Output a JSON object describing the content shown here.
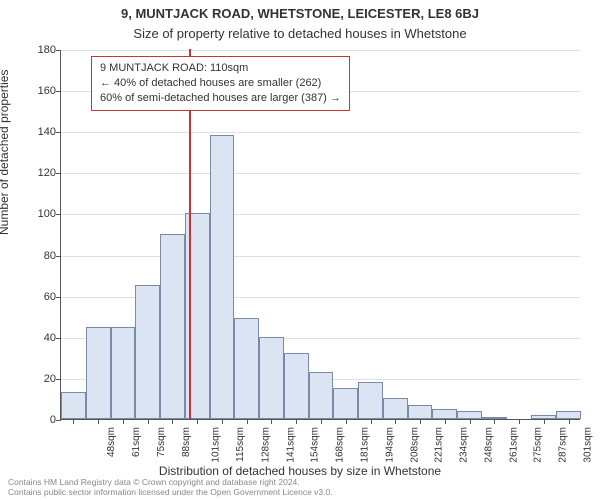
{
  "header": {
    "address": "9, MUNTJACK ROAD, WHETSTONE, LEICESTER, LE8 6BJ",
    "subtitle": "Size of property relative to detached houses in Whetstone"
  },
  "chart": {
    "type": "histogram",
    "ylabel": "Number of detached properties",
    "xlabel": "Distribution of detached houses by size in Whetstone",
    "ylim": [
      0,
      180
    ],
    "ytick_step": 20,
    "yticks": [
      0,
      20,
      40,
      60,
      80,
      100,
      120,
      140,
      160,
      180
    ],
    "categories": [
      "48sqm",
      "61sqm",
      "75sqm",
      "88sqm",
      "101sqm",
      "115sqm",
      "128sqm",
      "141sqm",
      "154sqm",
      "168sqm",
      "181sqm",
      "194sqm",
      "208sqm",
      "221sqm",
      "234sqm",
      "248sqm",
      "261sqm",
      "275sqm",
      "287sqm",
      "301sqm",
      "314sqm"
    ],
    "values": [
      13,
      45,
      45,
      65,
      90,
      100,
      138,
      49,
      40,
      32,
      23,
      15,
      18,
      10,
      7,
      5,
      4,
      1,
      0,
      2,
      4
    ],
    "bar_fill": "#dbe4f3",
    "bar_border": "#7a8aa8",
    "grid_color": "#e0e0e0",
    "background_color": "#ffffff",
    "axis_color": "#555555",
    "label_fontsize": 12,
    "tick_fontsize": 11,
    "marker": {
      "position_category_index": 5,
      "position_fraction_before": 0.35,
      "color": "#cc3333"
    },
    "annotation": {
      "line1": "9 MUNTJACK ROAD: 110sqm",
      "line2": "← 40% of detached houses are smaller (262)",
      "line3": "60% of semi-detached houses are larger (387) →",
      "border_color": "#cc3333",
      "text_color": "#333333",
      "fontsize": 11
    }
  },
  "footer": {
    "line1": "Contains HM Land Registry data © Crown copyright and database right 2024.",
    "line2": "Contains public sector information licensed under the Open Government Licence v3.0."
  }
}
